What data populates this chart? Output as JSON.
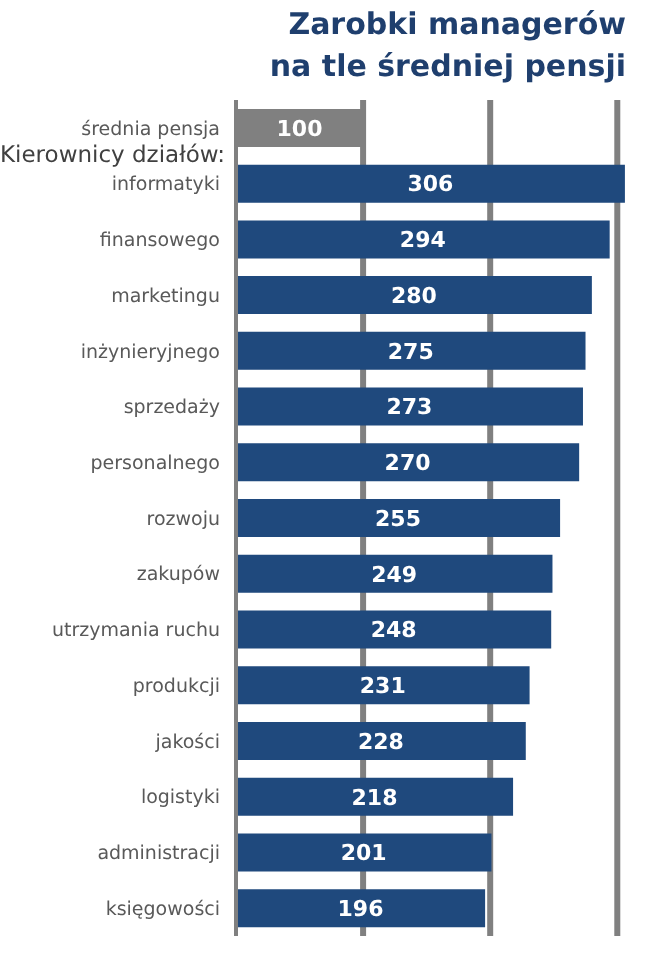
{
  "chart_data": {
    "type": "bar",
    "orientation": "horizontal",
    "title": "Zarobki managerów\nna tle średniej pensji",
    "categories": [
      "średnia pensja",
      "informatyki",
      "finansowego",
      "marketingu",
      "inżynieryjnego",
      "sprzedaży",
      "personalnego",
      "rozwoju",
      "zakupów",
      "utrzymania ruchu",
      "produkcji",
      "jakości",
      "logistyki",
      "administracji",
      "księgowości"
    ],
    "values": [
      100,
      306,
      294,
      280,
      275,
      273,
      270,
      255,
      249,
      248,
      231,
      228,
      218,
      201,
      196
    ],
    "colors": [
      "#808080",
      "#1f497d",
      "#1f497d",
      "#1f497d",
      "#1f497d",
      "#1f497d",
      "#1f497d",
      "#1f497d",
      "#1f497d",
      "#1f497d",
      "#1f497d",
      "#1f497d",
      "#1f497d",
      "#1f497d",
      "#1f497d"
    ],
    "xlim": [
      0,
      310
    ],
    "xticks": [
      {
        "value": 0,
        "label": null
      },
      {
        "value": 100,
        "label": null
      },
      {
        "value": 200,
        "label": null
      },
      {
        "value": 300,
        "label": null
      }
    ],
    "tick_labels": "y",
    "grid": "x",
    "data_labels": true,
    "annotations": [
      "Kierownicy działów:"
    ]
  }
}
